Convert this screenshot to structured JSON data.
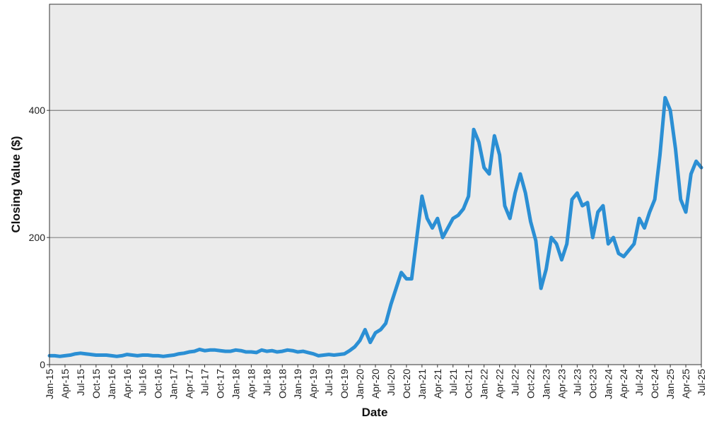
{
  "chart_data": {
    "type": "line",
    "x_label": "Date",
    "y_label": "Closing Value ($)",
    "x": [
      "2015-01",
      "2015-02",
      "2015-03",
      "2015-04",
      "2015-05",
      "2015-06",
      "2015-07",
      "2015-08",
      "2015-09",
      "2015-10",
      "2015-11",
      "2015-12",
      "2016-01",
      "2016-02",
      "2016-03",
      "2016-04",
      "2016-05",
      "2016-06",
      "2016-07",
      "2016-08",
      "2016-09",
      "2016-10",
      "2016-11",
      "2016-12",
      "2017-01",
      "2017-02",
      "2017-03",
      "2017-04",
      "2017-05",
      "2017-06",
      "2017-07",
      "2017-08",
      "2017-09",
      "2017-10",
      "2017-11",
      "2017-12",
      "2018-01",
      "2018-02",
      "2018-03",
      "2018-04",
      "2018-05",
      "2018-06",
      "2018-07",
      "2018-08",
      "2018-09",
      "2018-10",
      "2018-11",
      "2018-12",
      "2019-01",
      "2019-02",
      "2019-03",
      "2019-04",
      "2019-05",
      "2019-06",
      "2019-07",
      "2019-08",
      "2019-09",
      "2019-10",
      "2019-11",
      "2019-12",
      "2020-01",
      "2020-02",
      "2020-03",
      "2020-04",
      "2020-05",
      "2020-06",
      "2020-07",
      "2020-08",
      "2020-09",
      "2020-10",
      "2020-11",
      "2020-12",
      "2021-01",
      "2021-02",
      "2021-03",
      "2021-04",
      "2021-05",
      "2021-06",
      "2021-07",
      "2021-08",
      "2021-09",
      "2021-10",
      "2021-11",
      "2021-12",
      "2022-01",
      "2022-02",
      "2022-03",
      "2022-04",
      "2022-05",
      "2022-06",
      "2022-07",
      "2022-08",
      "2022-09",
      "2022-10",
      "2022-11",
      "2022-12",
      "2023-01",
      "2023-02",
      "2023-03",
      "2023-04",
      "2023-05",
      "2023-06",
      "2023-07",
      "2023-08",
      "2023-09",
      "2023-10",
      "2023-11",
      "2023-12",
      "2024-01",
      "2024-02",
      "2024-03",
      "2024-04",
      "2024-05",
      "2024-06",
      "2024-07",
      "2024-08",
      "2024-09",
      "2024-10",
      "2024-11",
      "2024-12",
      "2025-01",
      "2025-02",
      "2025-03",
      "2025-04",
      "2025-05",
      "2025-06",
      "2025-07"
    ],
    "series": [
      {
        "color": "#2b8fd4",
        "values": [
          14,
          14,
          13,
          14,
          15,
          17,
          18,
          17,
          16,
          15,
          15,
          15,
          14,
          13,
          14,
          16,
          15,
          14,
          15,
          15,
          14,
          14,
          13,
          14,
          15,
          17,
          18,
          20,
          21,
          24,
          22,
          23,
          23,
          22,
          21,
          21,
          23,
          22,
          20,
          20,
          19,
          23,
          21,
          22,
          20,
          21,
          23,
          22,
          20,
          21,
          19,
          17,
          14,
          15,
          16,
          15,
          16,
          17,
          22,
          28,
          38,
          55,
          35,
          50,
          55,
          65,
          95,
          120,
          145,
          135,
          135,
          200,
          265,
          230,
          215,
          230,
          200,
          215,
          230,
          235,
          245,
          265,
          370,
          350,
          310,
          300,
          360,
          330,
          250,
          230,
          270,
          300,
          270,
          225,
          195,
          120,
          150,
          200,
          190,
          165,
          190,
          260,
          270,
          250,
          255,
          200,
          240,
          250,
          190,
          200,
          175,
          170,
          180,
          190,
          230,
          215,
          240,
          260,
          330,
          420,
          400,
          340,
          260,
          240,
          300,
          320,
          310
        ]
      }
    ],
    "xlim": [
      "2015-01",
      "2025-07"
    ],
    "xticks": [
      {
        "value": "2015-01",
        "label": "Jan-15"
      },
      {
        "value": "2015-04",
        "label": "Apr-15"
      },
      {
        "value": "2015-07",
        "label": "Jul-15"
      },
      {
        "value": "2015-10",
        "label": "Oct-15"
      },
      {
        "value": "2016-01",
        "label": "Jan-16"
      },
      {
        "value": "2016-04",
        "label": "Apr-16"
      },
      {
        "value": "2016-07",
        "label": "Jul-16"
      },
      {
        "value": "2016-10",
        "label": "Oct-16"
      },
      {
        "value": "2017-01",
        "label": "Jan-17"
      },
      {
        "value": "2017-04",
        "label": "Apr-17"
      },
      {
        "value": "2017-07",
        "label": "Jul-17"
      },
      {
        "value": "2017-10",
        "label": "Oct-17"
      },
      {
        "value": "2018-01",
        "label": "Jan-18"
      },
      {
        "value": "2018-04",
        "label": "Apr-18"
      },
      {
        "value": "2018-07",
        "label": "Jul-18"
      },
      {
        "value": "2018-10",
        "label": "Oct-18"
      },
      {
        "value": "2019-01",
        "label": "Jan-19"
      },
      {
        "value": "2019-04",
        "label": "Apr-19"
      },
      {
        "value": "2019-07",
        "label": "Jul-19"
      },
      {
        "value": "2019-10",
        "label": "Oct-19"
      },
      {
        "value": "2020-01",
        "label": "Jan-20"
      },
      {
        "value": "2020-04",
        "label": "Apr-20"
      },
      {
        "value": "2020-07",
        "label": "Jul-20"
      },
      {
        "value": "2020-10",
        "label": "Oct-20"
      },
      {
        "value": "2021-01",
        "label": "Jan-21"
      },
      {
        "value": "2021-04",
        "label": "Apr-21"
      },
      {
        "value": "2021-07",
        "label": "Jul-21"
      },
      {
        "value": "2021-10",
        "label": "Oct-21"
      },
      {
        "value": "2022-01",
        "label": "Jan-22"
      },
      {
        "value": "2022-04",
        "label": "Apr-22"
      },
      {
        "value": "2022-07",
        "label": "Jul-22"
      },
      {
        "value": "2022-10",
        "label": "Oct-22"
      },
      {
        "value": "2023-01",
        "label": "Jan-23"
      },
      {
        "value": "2023-04",
        "label": "Apr-23"
      },
      {
        "value": "2023-07",
        "label": "Jul-23"
      },
      {
        "value": "2023-10",
        "label": "Oct-23"
      },
      {
        "value": "2024-01",
        "label": "Jan-24"
      },
      {
        "value": "2024-04",
        "label": "Apr-24"
      },
      {
        "value": "2024-07",
        "label": "Jul-24"
      },
      {
        "value": "2024-10",
        "label": "Oct-24"
      },
      {
        "value": "2025-01",
        "label": "Jan-25"
      },
      {
        "value": "2025-04",
        "label": "Apr-25"
      },
      {
        "value": "2025-07",
        "label": "Jul-25"
      }
    ],
    "ylim": [
      0,
      567
    ],
    "yticks": [
      0,
      200,
      400
    ],
    "grid": true
  }
}
